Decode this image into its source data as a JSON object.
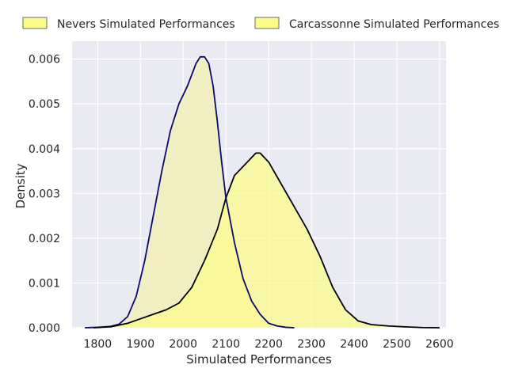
{
  "chart_data": {
    "type": "area",
    "title": "",
    "xlabel": "Simulated Performances",
    "ylabel": "Density",
    "xlim": [
      1740,
      2615
    ],
    "ylim": [
      0,
      0.0064
    ],
    "xticks": [
      1800,
      1900,
      2000,
      2100,
      2200,
      2300,
      2400,
      2500,
      2600
    ],
    "xtick_labels": [
      "1800",
      "1900",
      "2000",
      "2100",
      "2200",
      "2300",
      "2400",
      "2500",
      "2600"
    ],
    "yticks": [
      0,
      0.001,
      0.002,
      0.003,
      0.004,
      0.005,
      0.006
    ],
    "ytick_labels": [
      "0.000",
      "0.001",
      "0.002",
      "0.003",
      "0.004",
      "0.005",
      "0.006"
    ],
    "grid": true,
    "legend_position": "top",
    "series": [
      {
        "name": "Nevers Simulated Performances",
        "fill_color": "#f1efbe",
        "line_color": "#0a0a6e",
        "x": [
          1770,
          1800,
          1830,
          1850,
          1870,
          1890,
          1910,
          1930,
          1950,
          1970,
          1990,
          2010,
          2030,
          2040,
          2050,
          2060,
          2070,
          2080,
          2090,
          2100,
          2120,
          2140,
          2160,
          2180,
          2200,
          2220,
          2240,
          2260
        ],
        "y": [
          0,
          1e-05,
          3e-05,
          8e-05,
          0.00025,
          0.0007,
          0.0015,
          0.0025,
          0.0035,
          0.0044,
          0.005,
          0.0054,
          0.0059,
          0.00605,
          0.00605,
          0.0059,
          0.0054,
          0.0046,
          0.0037,
          0.0029,
          0.0019,
          0.0011,
          0.0006,
          0.0003,
          0.0001,
          4e-05,
          1e-05,
          0
        ]
      },
      {
        "name": "Carcassonne Simulated Performances",
        "fill_color": "#fbfb8c",
        "line_color": "#000000",
        "x": [
          1790,
          1830,
          1870,
          1900,
          1930,
          1960,
          1990,
          2020,
          2050,
          2080,
          2100,
          2120,
          2150,
          2170,
          2180,
          2200,
          2230,
          2260,
          2290,
          2320,
          2350,
          2380,
          2410,
          2440,
          2480,
          2520,
          2560,
          2600
        ],
        "y": [
          0,
          2e-05,
          0.0001,
          0.0002,
          0.0003,
          0.0004,
          0.00055,
          0.0009,
          0.0015,
          0.0022,
          0.0029,
          0.0034,
          0.0037,
          0.0039,
          0.0039,
          0.0037,
          0.0032,
          0.0027,
          0.0022,
          0.0016,
          0.0009,
          0.0004,
          0.00015,
          7e-05,
          4e-05,
          2e-05,
          5e-06,
          0
        ]
      }
    ]
  }
}
